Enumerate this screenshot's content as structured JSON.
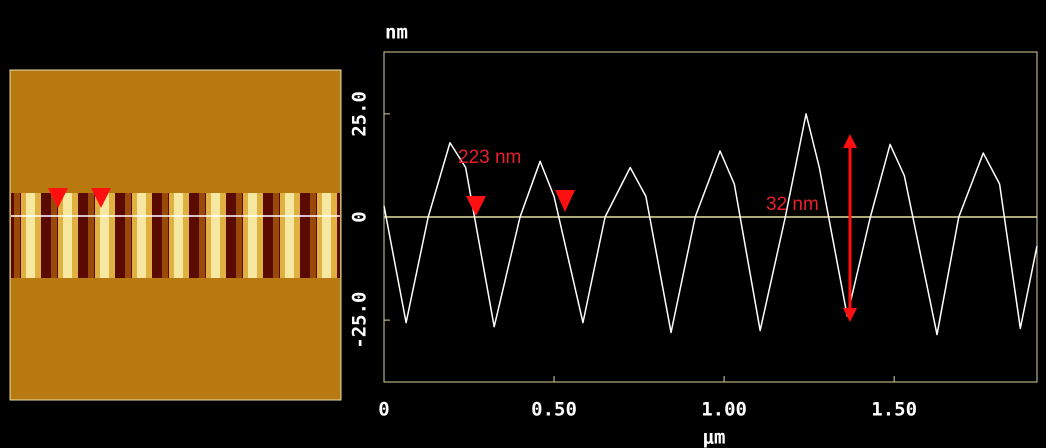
{
  "chart_data": {
    "type": "line",
    "x_label": "μm",
    "y_label": "nm",
    "x": [
      0,
      0.065,
      0.13,
      0.194,
      0.24,
      0.324,
      0.4,
      0.459,
      0.5,
      0.585,
      0.65,
      0.724,
      0.77,
      0.844,
      0.915,
      0.988,
      1.03,
      1.106,
      1.18,
      1.241,
      1.28,
      1.362,
      1.43,
      1.488,
      1.53,
      1.626,
      1.69,
      1.762,
      1.81,
      1.871,
      1.92
    ],
    "series": [
      {
        "color": "#ffffff",
        "values": [
          2.7,
          -25.6,
          0,
          18,
          12,
          -26.6,
          0,
          13.5,
          5,
          -25.6,
          0,
          12,
          5,
          -28,
          0,
          16,
          8,
          -27.5,
          0,
          25,
          12,
          -24,
          0,
          17.6,
          10,
          -28.5,
          0,
          15.5,
          8,
          -27,
          -7
        ]
      }
    ],
    "xlim": [
      0,
      1.92
    ],
    "ylim": [
      -40,
      40
    ],
    "xticks": [
      0,
      {
        "value": 0.5,
        "label": "0.50"
      },
      {
        "value": 1,
        "label": "1.00"
      },
      {
        "value": 1.5,
        "label": "1.50"
      }
    ],
    "yticks": [
      {
        "value": 25,
        "label": "25.0"
      },
      0,
      {
        "value": -25,
        "label": "-25.0"
      }
    ],
    "annotations": [
      "223 nm",
      "32 nm"
    ]
  }
}
